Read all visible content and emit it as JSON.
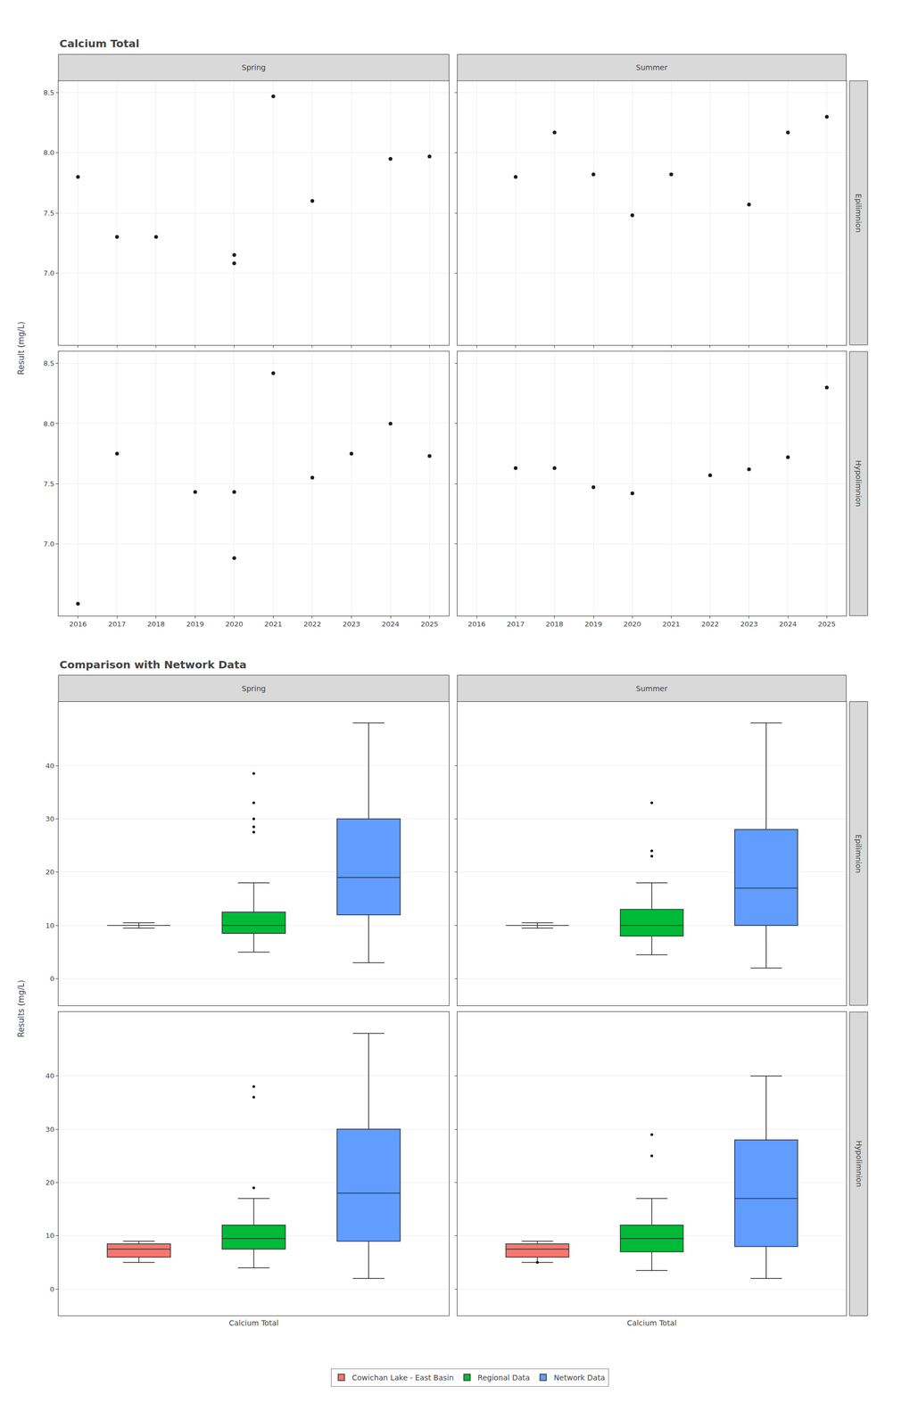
{
  "chart_data": [
    {
      "type": "scatter",
      "title": "Calcium Total",
      "ylabel": "Result (mg/L)",
      "columns": [
        "Spring",
        "Summer"
      ],
      "rows": [
        "Epilimnion",
        "Hypolimnion"
      ],
      "color": "#1a1a1a",
      "xlim": [
        2015.5,
        2025.5
      ],
      "xticks": [
        2016,
        2017,
        2018,
        2019,
        2020,
        2021,
        2022,
        2023,
        2024,
        2025
      ],
      "ylim": [
        6.4,
        8.6
      ],
      "yticks": [
        {
          "value": 7.0,
          "label": "7.0"
        },
        7.5,
        {
          "value": 8.0,
          "label": "8.0"
        },
        8.5
      ],
      "grid": true,
      "legend": false,
      "panels": [
        {
          "column": "Spring",
          "row": "Epilimnion",
          "x": [
            2016,
            2017,
            2018,
            2020,
            2020,
            2021,
            2022,
            2023,
            2024,
            2025
          ],
          "y": [
            7.8,
            7.3,
            7.3,
            7.15,
            7.08,
            8.47,
            7.6,
            null,
            7.95,
            7.97
          ]
        },
        {
          "column": "Summer",
          "row": "Epilimnion",
          "x": [
            2017,
            2018,
            2019,
            2020,
            2021,
            2022,
            2023,
            2024,
            2025
          ],
          "y": [
            7.8,
            8.17,
            7.82,
            7.48,
            7.82,
            null,
            7.57,
            8.17,
            8.3
          ]
        },
        {
          "column": "Spring",
          "row": "Hypolimnion",
          "x": [
            2016,
            2017,
            2019,
            2020,
            2020,
            2021,
            2022,
            2023,
            2024,
            2025
          ],
          "y": [
            6.5,
            7.75,
            7.43,
            7.43,
            6.88,
            8.42,
            7.55,
            7.75,
            8.0,
            7.73
          ]
        },
        {
          "column": "Summer",
          "row": "Hypolimnion",
          "x": [
            2017,
            2018,
            2019,
            2020,
            2021,
            2022,
            2023,
            2024,
            2025
          ],
          "y": [
            7.63,
            7.63,
            7.47,
            7.42,
            null,
            7.57,
            7.62,
            7.72,
            8.3
          ]
        }
      ]
    },
    {
      "type": "box",
      "title": "Comparison with Network Data",
      "ylabel": "Results (mg/L)",
      "xlabel": "Calcium Total",
      "columns": [
        "Spring",
        "Summer"
      ],
      "rows": [
        "Epilimnion",
        "Hypolimnion"
      ],
      "ylim": [
        -5,
        52
      ],
      "yticks": [
        0,
        10,
        20,
        30,
        40
      ],
      "grid": "y",
      "legend": "bottom",
      "series": [
        {
          "name": "Cowichan Lake - East Basin",
          "color": "#F8766D"
        },
        {
          "name": "Regional Data",
          "color": "#00BA38"
        },
        {
          "name": "Network Data",
          "color": "#619CFF"
        }
      ],
      "panels": [
        {
          "column": "Spring",
          "row": "Epilimnion",
          "boxes": [
            {
              "median": 10.0,
              "q1": 10.0,
              "q3": 10.0,
              "whislo": 9.5,
              "whishi": 10.5,
              "fliers": []
            },
            {
              "median": 10.0,
              "q1": 8.5,
              "q3": 12.5,
              "whislo": 5.0,
              "whishi": 18.0,
              "fliers": [
                38.5,
                33.0,
                30.0,
                28.5,
                27.5
              ]
            },
            {
              "median": 19.0,
              "q1": 12.0,
              "q3": 30.0,
              "whislo": 3.0,
              "whishi": 48.0,
              "fliers": []
            }
          ]
        },
        {
          "column": "Summer",
          "row": "Epilimnion",
          "boxes": [
            {
              "median": 10.0,
              "q1": 10.0,
              "q3": 10.0,
              "whislo": 9.5,
              "whishi": 10.5,
              "fliers": []
            },
            {
              "median": 10.0,
              "q1": 8.0,
              "q3": 13.0,
              "whislo": 4.5,
              "whishi": 18.0,
              "fliers": [
                33.0,
                24.0,
                23.0
              ]
            },
            {
              "median": 17.0,
              "q1": 10.0,
              "q3": 28.0,
              "whislo": 2.0,
              "whishi": 48.0,
              "fliers": []
            }
          ]
        },
        {
          "column": "Spring",
          "row": "Hypolimnion",
          "boxes": [
            {
              "median": 7.5,
              "q1": 6.0,
              "q3": 8.5,
              "whislo": 5.0,
              "whishi": 9.0,
              "fliers": []
            },
            {
              "median": 9.5,
              "q1": 7.5,
              "q3": 12.0,
              "whislo": 4.0,
              "whishi": 17.0,
              "fliers": [
                38.0,
                36.0,
                19.0
              ]
            },
            {
              "median": 18.0,
              "q1": 9.0,
              "q3": 30.0,
              "whislo": 2.0,
              "whishi": 48.0,
              "fliers": []
            }
          ]
        },
        {
          "column": "Summer",
          "row": "Hypolimnion",
          "boxes": [
            {
              "median": 7.5,
              "q1": 6.0,
              "q3": 8.5,
              "whislo": 5.0,
              "whishi": 9.0,
              "fliers": [
                5.0
              ]
            },
            {
              "median": 9.5,
              "q1": 7.0,
              "q3": 12.0,
              "whislo": 3.5,
              "whishi": 17.0,
              "fliers": [
                29.0,
                25.0
              ]
            },
            {
              "median": 17.0,
              "q1": 8.0,
              "q3": 28.0,
              "whislo": 2.0,
              "whishi": 40.0,
              "fliers": []
            }
          ]
        }
      ]
    }
  ]
}
